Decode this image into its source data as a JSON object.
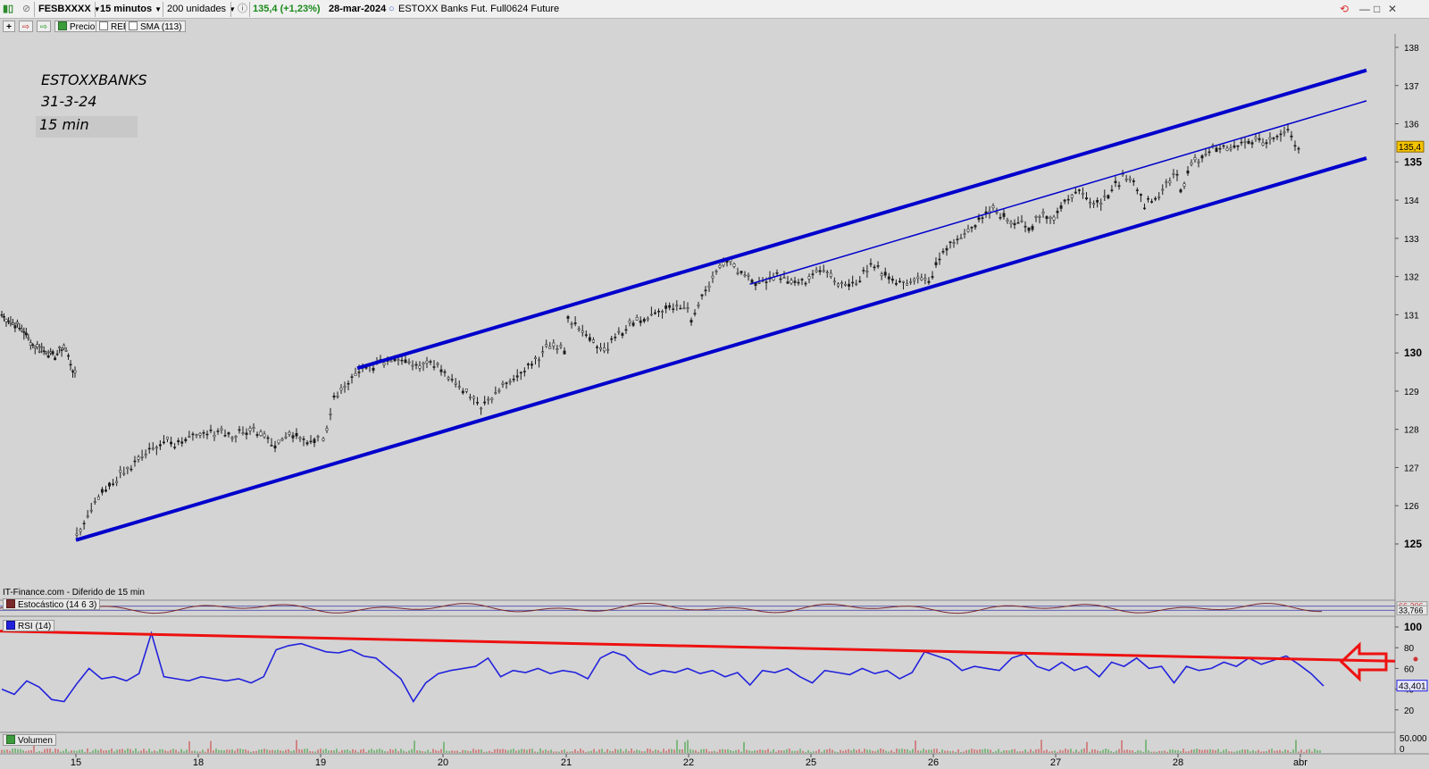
{
  "toolbar": {
    "symbol": "FESBXXXX",
    "timeframe": "15 minutos",
    "units": "200 unidades",
    "price_change": "135,4 (+1,23%)",
    "date": "28-mar-2024",
    "instrument": "ESTOXX Banks Fut. Full0624 Future"
  },
  "chart_toolbar": {
    "price_label": "Precio",
    "rep_label": "REP",
    "sma_label": "SMA (113)"
  },
  "annotation": {
    "line1": "ESTOXXBANKS",
    "line2": "31-3-24",
    "line3": "15 min"
  },
  "source_note": "IT-Finance.com - Diferido de 15 min",
  "colors": {
    "price_bars": "#1a1a1a",
    "channel": "#0000cc",
    "rsi_line": "#2222dd",
    "resistance": "#ee1111",
    "stoch_line": "#7a2a2a",
    "stoch_signal": "#3333aa",
    "last_price_badge": "#f5c400"
  },
  "chart_data": [
    {
      "type": "candlestick",
      "panel": "price",
      "x_ticks": [
        "15",
        "18",
        "19",
        "20",
        "21",
        "22",
        "25",
        "26",
        "27",
        "28",
        "abr"
      ],
      "y_ticks": [
        "125",
        "126",
        "127",
        "128",
        "129",
        "130",
        "131",
        "132",
        "133",
        "134",
        "135",
        "136",
        "137",
        "138"
      ],
      "ylim": [
        124.7,
        138.6
      ],
      "last_price": "135,4",
      "series": [
        {
          "session": "prev",
          "values": [
            131.0,
            130.8,
            130.6,
            130.2,
            130.1,
            129.9,
            130.2,
            129.4
          ]
        },
        {
          "session": "15",
          "values": [
            125.2,
            125.7,
            126.2,
            126.5,
            126.8,
            127.0,
            127.3,
            127.5,
            127.7,
            127.6,
            127.8,
            127.9
          ]
        },
        {
          "session": "18",
          "values": [
            127.8,
            127.9,
            128.0,
            127.8,
            127.9,
            128.0,
            127.9,
            127.6,
            127.8,
            127.9,
            127.7,
            127.8
          ]
        },
        {
          "session": "19",
          "values": [
            127.7,
            128.8,
            129.1,
            129.4,
            129.6,
            129.7,
            129.8,
            129.9,
            129.8,
            129.7,
            129.8,
            129.6
          ]
        },
        {
          "session": "20",
          "values": [
            129.4,
            129.2,
            128.9,
            128.6,
            128.8,
            129.2,
            129.4,
            129.6,
            129.9,
            130.3,
            130.1
          ]
        },
        {
          "session": "21",
          "values": [
            130.9,
            130.6,
            130.3,
            130.0,
            130.4,
            130.7,
            130.9,
            131.0,
            131.1,
            131.2,
            131.1
          ]
        },
        {
          "session": "22",
          "values": [
            130.9,
            131.4,
            132.0,
            132.4,
            132.3,
            132.0,
            131.8,
            131.9,
            132.0,
            131.9,
            131.8,
            131.9
          ]
        },
        {
          "session": "25",
          "values": [
            132.1,
            132.2,
            131.9,
            131.7,
            132.0,
            132.3,
            132.1,
            131.8,
            131.9,
            132.0,
            131.9
          ]
        },
        {
          "session": "26",
          "values": [
            132.4,
            132.8,
            133.0,
            133.3,
            133.6,
            133.8,
            133.5,
            133.4,
            133.3,
            133.6,
            133.5
          ]
        },
        {
          "session": "27",
          "values": [
            133.6,
            134.1,
            134.3,
            134.0,
            133.9,
            134.3,
            134.6,
            134.4,
            133.9,
            134.0,
            134.5,
            134.7
          ]
        },
        {
          "session": "28",
          "values": [
            134.2,
            135.0,
            135.2,
            135.4,
            135.3,
            135.5,
            135.6,
            135.5,
            135.7,
            135.8,
            135.4
          ]
        }
      ],
      "channel_lines": [
        {
          "name": "upper",
          "from": [
            19.3,
            129.6
          ],
          "to": [
            "abr+",
            137.4
          ]
        },
        {
          "name": "middle",
          "from": [
            22.5,
            131.8
          ],
          "to": [
            "abr+",
            136.6
          ]
        },
        {
          "name": "lower",
          "from": [
            15.0,
            125.1
          ],
          "to": [
            "abr+",
            135.1
          ]
        }
      ]
    },
    {
      "type": "line",
      "panel": "stochastic",
      "label": "Estocástico (14 6 3)",
      "readouts": [
        "66,206",
        "33,766"
      ],
      "levels": [
        66.206,
        33.766
      ]
    },
    {
      "type": "line",
      "panel": "rsi",
      "label": "RSI (14)",
      "y_ticks": [
        "100",
        "80",
        "60",
        "40",
        "20"
      ],
      "ylim": [
        0,
        100
      ],
      "readout": "43,401",
      "values": [
        40,
        35,
        48,
        42,
        30,
        28,
        45,
        60,
        50,
        52,
        48,
        55,
        94,
        52,
        50,
        48,
        52,
        50,
        48,
        50,
        46,
        52,
        78,
        82,
        84,
        80,
        76,
        75,
        78,
        72,
        70,
        60,
        50,
        28,
        46,
        55,
        58,
        60,
        62,
        70,
        52,
        58,
        56,
        60,
        55,
        58,
        56,
        50,
        70,
        76,
        72,
        60,
        54,
        58,
        56,
        60,
        55,
        58,
        52,
        56,
        44,
        58,
        56,
        60,
        52,
        46,
        58,
        56,
        54,
        60,
        55,
        58,
        50,
        56,
        76,
        72,
        68,
        58,
        62,
        60,
        58,
        70,
        74,
        62,
        58,
        66,
        58,
        62,
        52,
        66,
        62,
        70,
        60,
        62,
        46,
        62,
        58,
        60,
        66,
        62,
        70,
        64,
        68,
        72,
        64,
        55,
        43
      ],
      "resistance_line": {
        "from": 96,
        "to": 67
      }
    },
    {
      "type": "bar",
      "panel": "volume",
      "label": "Volumen",
      "y_ticks": [
        "50.000",
        "0"
      ]
    }
  ]
}
